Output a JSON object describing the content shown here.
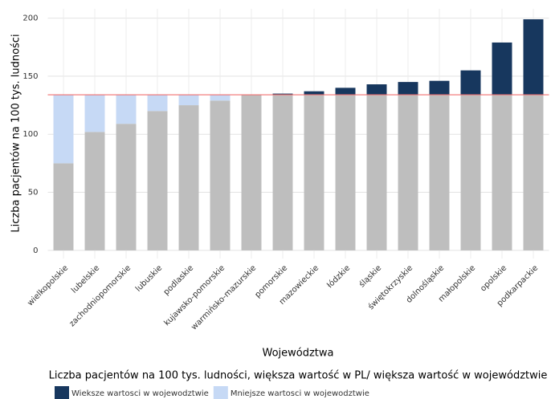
{
  "chart_data": {
    "type": "bar",
    "xlabel": "Województwa",
    "ylabel": "Liczba pacjentów na 100 tys. ludności",
    "categories": [
      "wielkopolskie",
      "lubelskie",
      "zachodniopomorskie",
      "lubuskie",
      "podlaskie",
      "kujawsko-pomorskie",
      "warmińsko-mazurskie",
      "pomorskie",
      "mazowieckie",
      "łódzkie",
      "śląskie",
      "świętokrzyskie",
      "dolnośląskie",
      "małopolskie",
      "opolskie",
      "podkarpackie"
    ],
    "values": [
      75,
      102,
      109,
      120,
      125,
      129,
      134,
      135,
      137,
      140,
      143,
      145,
      146,
      155,
      179,
      199
    ],
    "color": "#bebebe",
    "reference": {
      "value": 134,
      "color": "#f07070"
    },
    "ylim": [
      -7,
      208
    ],
    "yticks": [
      0,
      50,
      100,
      150,
      200
    ],
    "grid": true,
    "legend": {
      "title": "Liczba pacjentów na 100 tys. ludności, większa wartość w PL/ większa wartość w województwie",
      "entries": [
        {
          "name": "Wieksze wartosci w wojewodztwie",
          "color": "#17375e"
        },
        {
          "name": "Mniejsze wartosci w wojewodztwie",
          "color": "#c6d9f5"
        }
      ]
    }
  }
}
